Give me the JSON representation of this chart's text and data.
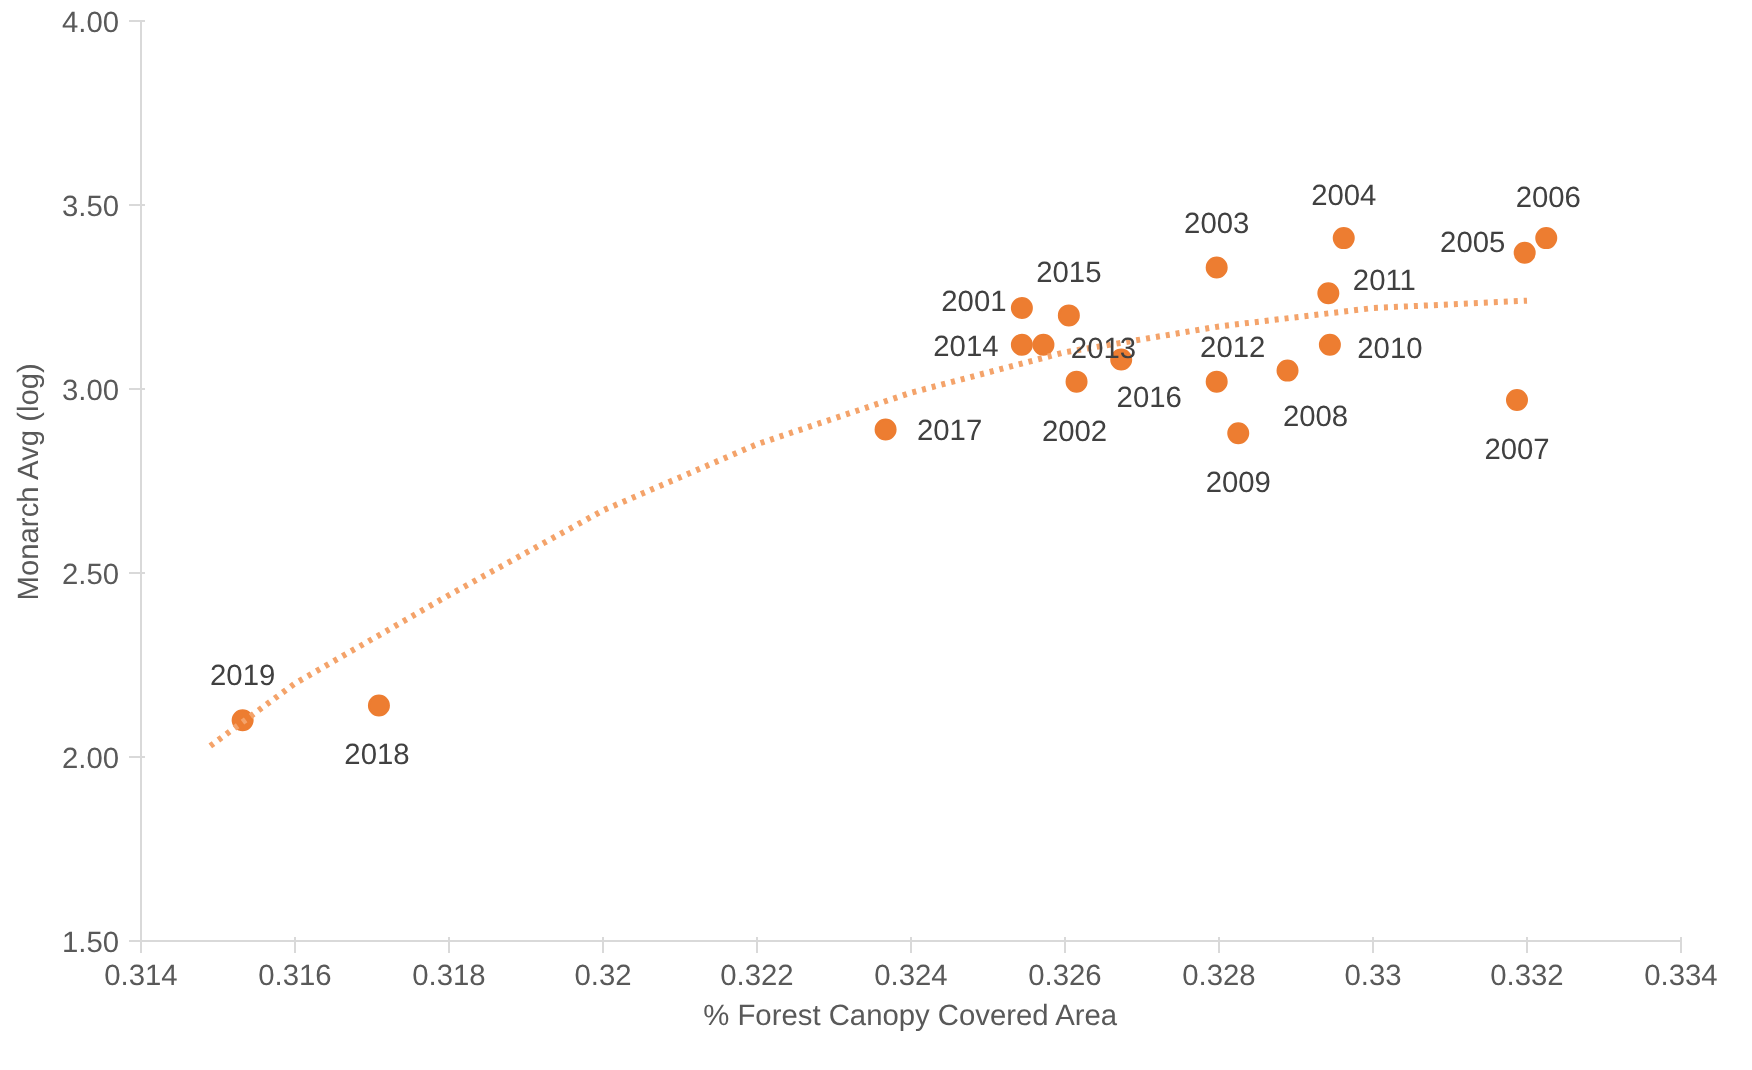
{
  "chart_data": {
    "type": "scatter",
    "xlabel": "% Forest Canopy Covered Area",
    "ylabel": "Monarch Avg (log)",
    "xlim": [
      0.314,
      0.334
    ],
    "xticks": [
      0.314,
      0.316,
      0.318,
      0.32,
      0.322,
      0.324,
      0.326,
      0.328,
      0.33,
      0.332,
      0.334
    ],
    "ylim": [
      1.5,
      4.0
    ],
    "yticks": [
      {
        "value": 1.5,
        "label": "1.50"
      },
      {
        "value": 2.0,
        "label": "2.00"
      },
      {
        "value": 2.5,
        "label": "2.50"
      },
      {
        "value": 3.0,
        "label": "3.00"
      },
      {
        "value": 3.5,
        "label": "3.50"
      },
      {
        "value": 4.0,
        "label": "4.00"
      }
    ],
    "grid": false,
    "marker": "circle",
    "series": [
      {
        "type": "scatter",
        "color": "#ed7d31",
        "x": [
          0.31532,
          0.31709,
          0.32367,
          0.32544,
          0.32544,
          0.32572,
          0.32605,
          0.32615,
          0.32673,
          0.32797,
          0.32797,
          0.32825,
          0.32889,
          0.32942,
          0.32944,
          0.32962,
          0.33187,
          0.33197,
          0.33225
        ],
        "values": [
          2.1,
          2.14,
          2.89,
          3.22,
          3.12,
          3.12,
          3.2,
          3.02,
          3.08,
          3.33,
          3.02,
          2.88,
          3.05,
          3.26,
          3.12,
          3.41,
          2.97,
          3.37,
          3.41
        ]
      },
      {
        "type": "line",
        "line_style": "dotted",
        "marker": "none",
        "color": "#f4a36a",
        "x": [
          0.3149,
          0.316,
          0.318,
          0.32,
          0.322,
          0.324,
          0.326,
          0.328,
          0.33,
          0.332
        ],
        "values": [
          2.03,
          2.2,
          2.44,
          2.67,
          2.85,
          2.99,
          3.1,
          3.17,
          3.22,
          3.24
        ]
      }
    ],
    "annotations": [
      {
        "text": "2019",
        "x": 0.31532,
        "y": 2.1
      },
      {
        "text": "2018",
        "x": 0.31709,
        "y": 2.14
      },
      {
        "text": "2017",
        "x": 0.32367,
        "y": 2.89
      },
      {
        "text": "2001",
        "x": 0.32544,
        "y": 3.22
      },
      {
        "text": "2014",
        "x": 0.32544,
        "y": 3.12
      },
      {
        "text": "2013",
        "x": 0.32572,
        "y": 3.12
      },
      {
        "text": "2015",
        "x": 0.32605,
        "y": 3.2
      },
      {
        "text": "2002",
        "x": 0.32615,
        "y": 3.02
      },
      {
        "text": "2016",
        "x": 0.32673,
        "y": 3.08
      },
      {
        "text": "2003",
        "x": 0.32797,
        "y": 3.33
      },
      {
        "text": "2012",
        "x": 0.32797,
        "y": 3.02
      },
      {
        "text": "2009",
        "x": 0.32825,
        "y": 2.88
      },
      {
        "text": "2008",
        "x": 0.32889,
        "y": 3.05
      },
      {
        "text": "2011",
        "x": 0.32942,
        "y": 3.26
      },
      {
        "text": "2010",
        "x": 0.32944,
        "y": 3.12
      },
      {
        "text": "2004",
        "x": 0.32962,
        "y": 3.41
      },
      {
        "text": "2007",
        "x": 0.33187,
        "y": 2.97
      },
      {
        "text": "2005",
        "x": 0.33197,
        "y": 3.37
      },
      {
        "text": "2006",
        "x": 0.33225,
        "y": 3.41
      }
    ]
  }
}
